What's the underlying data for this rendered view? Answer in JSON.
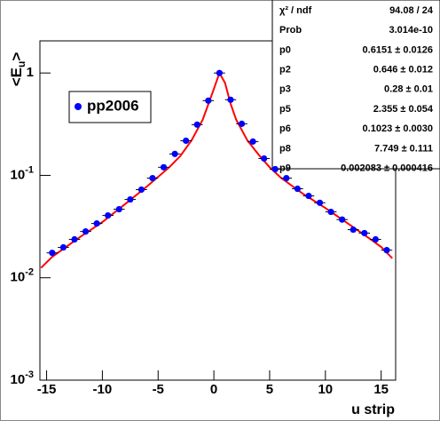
{
  "chart_data": {
    "type": "scatter",
    "log_y": true,
    "xlabel": "u strip",
    "ylabel_parts": [
      "<E",
      "u",
      ">"
    ],
    "xlim": [
      -15.6,
      16.3
    ],
    "ylim": [
      0.001,
      2.06
    ],
    "xticks": [
      -15,
      -10,
      -5,
      0,
      5,
      10,
      15
    ],
    "yticks": [
      {
        "value": 0.001,
        "label": "10",
        "exponent": "-3"
      },
      {
        "value": 0.01,
        "label": "10",
        "exponent": "-2"
      },
      {
        "value": 0.1,
        "label": "10",
        "exponent": "-1"
      },
      1
    ],
    "series": [
      {
        "name": "pp2006",
        "color": "#0000ff",
        "x": [
          -14.5,
          -13.5,
          -12.5,
          -11.5,
          -10.5,
          -9.5,
          -8.5,
          -7.5,
          -6.5,
          -5.5,
          -4.5,
          -3.5,
          -2.5,
          -1.5,
          -0.5,
          0.5,
          1.5,
          2.5,
          3.5,
          4.5,
          5.5,
          6.5,
          7.5,
          8.5,
          9.5,
          10.5,
          11.5,
          12.5,
          13.5,
          14.5,
          15.5
        ],
        "values": [
          0.0175,
          0.0198,
          0.0237,
          0.0283,
          0.0339,
          0.0406,
          0.0467,
          0.0582,
          0.0726,
          0.094,
          0.12,
          0.162,
          0.218,
          0.313,
          0.537,
          1.0,
          0.548,
          0.319,
          0.214,
          0.146,
          0.115,
          0.094,
          0.074,
          0.063,
          0.054,
          0.044,
          0.037,
          0.0295,
          0.0273,
          0.0237,
          0.0186
        ]
      },
      {
        "color": "#ff0000",
        "x": [
          -15.5,
          -14.5,
          -12,
          -10,
          -8,
          -6,
          -4,
          -3,
          -2,
          -1,
          0,
          0.5,
          1,
          1.5,
          2,
          3,
          4,
          5,
          6,
          8,
          10,
          12,
          14,
          15,
          16
        ],
        "values": [
          0.0125,
          0.016,
          0.025,
          0.035,
          0.052,
          0.078,
          0.12,
          0.155,
          0.22,
          0.35,
          0.7,
          1.0,
          0.8,
          0.5,
          0.35,
          0.22,
          0.16,
          0.12,
          0.095,
          0.066,
          0.048,
          0.034,
          0.024,
          0.02,
          0.0155
        ]
      }
    ],
    "stats": [
      [
        "χ² / ndf",
        "94.08 / 24"
      ],
      [
        "Prob",
        "3.014e-10"
      ],
      [
        "p0",
        "0.6151 ± 0.0126"
      ],
      [
        "p2",
        "0.646 ± 0.012"
      ],
      [
        "p3",
        "0.28 ± 0.01"
      ],
      [
        "p5",
        "2.355 ± 0.054"
      ],
      [
        "p6",
        "0.1023 ± 0.0030"
      ],
      [
        "p8",
        "7.749 ± 0.111"
      ],
      [
        "p9",
        "0.002083 ± 0.000416"
      ]
    ]
  }
}
